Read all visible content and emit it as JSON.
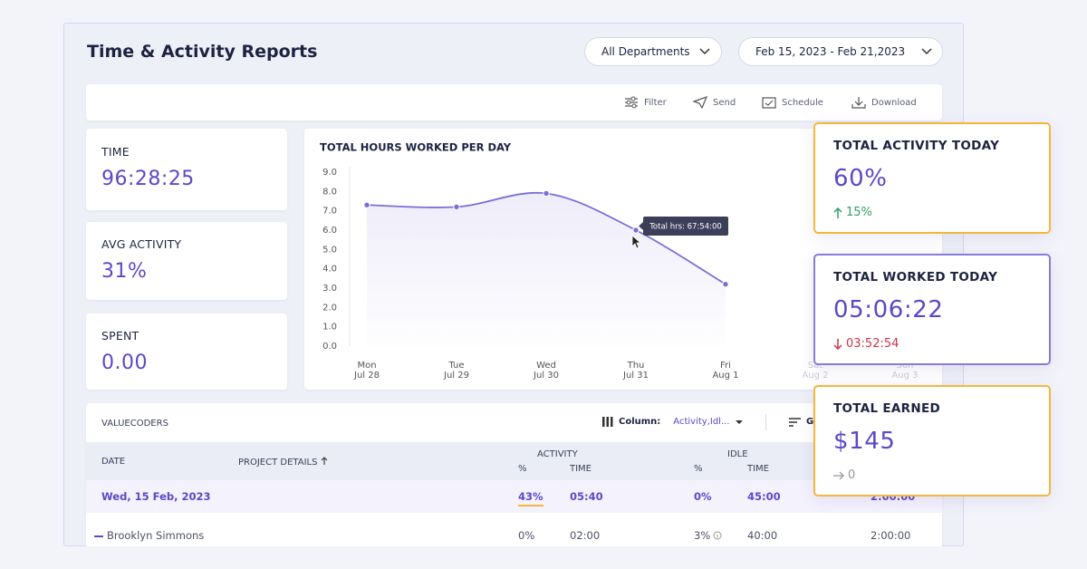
{
  "header": {
    "title": "Time & Activity Reports",
    "department": "All Departments",
    "date_range": "Feb 15, 2023 - Feb 21,2023"
  },
  "toolbar": [
    "Filter",
    "Send",
    "Schedule",
    "Download"
  ],
  "stats": [
    {
      "label": "TIME",
      "value": "96:28:25"
    },
    {
      "label": "AVG ACTIVITY",
      "value": "31%"
    },
    {
      "label": "SPENT",
      "value": "0.00"
    }
  ],
  "chart_data": {
    "type": "line",
    "title": "TOTAL HOURS WORKED PER DAY",
    "categories": [
      "Mon",
      "Tue",
      "Wed",
      "Thu",
      "Fri",
      "Sat",
      "Sun"
    ],
    "dates": [
      "Jul 28",
      "Jul 29",
      "Jul 30",
      "Jul 31",
      "Aug 1",
      "Aug 2",
      "Aug 3"
    ],
    "series": [
      {
        "name": "Total hrs",
        "color": "#7b6fd6",
        "values": [
          7.3,
          7.2,
          7.9,
          6.0,
          3.2,
          null,
          null
        ]
      }
    ],
    "ylim": [
      0,
      9
    ],
    "yticks": [
      {
        "value": 0,
        "label": "0.0"
      },
      {
        "value": 1,
        "label": "1.0"
      },
      {
        "value": 2,
        "label": "2.0"
      },
      {
        "value": 3,
        "label": "3.0"
      },
      {
        "value": 4,
        "label": "4.0"
      },
      {
        "value": 5,
        "label": "5.0"
      },
      {
        "value": 6,
        "label": "6.0"
      },
      {
        "value": 7,
        "label": "7.0"
      },
      {
        "value": 8,
        "label": "8.0"
      },
      {
        "value": 9,
        "label": "9.0"
      }
    ],
    "tooltip": "Total hrs: 67:54:00"
  },
  "cards": [
    {
      "title": "TOTAL ACTIVITY TODAY",
      "value": "60%",
      "change": "15%"
    },
    {
      "title": "TOTAL WORKED TODAY",
      "value": "05:06:22",
      "change": "03:52:54"
    },
    {
      "title": "TOTAL EARNED",
      "value": "$145",
      "change": "0"
    }
  ],
  "table": {
    "title": "VALUECODERS",
    "column_label": "Column:",
    "column_value": "Activity,Idl...",
    "group_button": "G",
    "headers": [
      "DATE",
      "PROJECT DETAILS"
    ],
    "groups": [
      {
        "name": "ACTIVITY",
        "sub": [
          "%",
          "TIME"
        ]
      },
      {
        "name": "IDLE",
        "sub": [
          "%",
          "TIME"
        ]
      }
    ],
    "rows": [
      [
        "Wed, 15 Feb, 2023",
        "43%",
        "05:40",
        "0%",
        "45:00",
        "2:00:00"
      ],
      [
        "Brooklyn Simmons",
        "0%",
        "02:00",
        "3%",
        "40:00",
        "2:00:00"
      ]
    ]
  }
}
